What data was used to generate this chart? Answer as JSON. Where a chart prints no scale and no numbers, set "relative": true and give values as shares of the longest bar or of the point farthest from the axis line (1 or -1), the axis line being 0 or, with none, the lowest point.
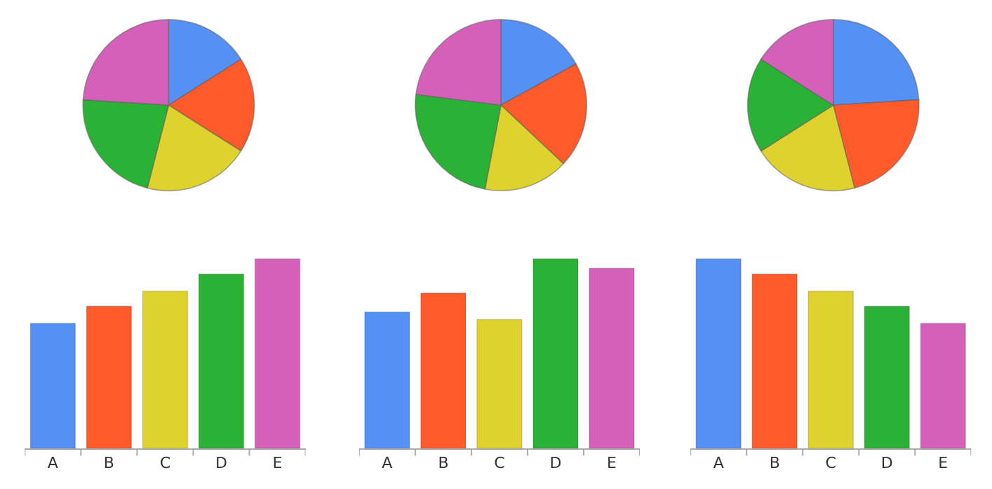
{
  "chart_data": [
    {
      "type": "pie",
      "categories": [
        null,
        null,
        null,
        null,
        null
      ],
      "values": [
        16,
        18,
        20,
        22,
        24
      ],
      "colors": [
        "#5591f5",
        "#fe5a2a",
        "#e0d22e",
        "#2bb236",
        "#d560b9"
      ]
    },
    {
      "type": "pie",
      "categories": [
        null,
        null,
        null,
        null,
        null
      ],
      "values": [
        17,
        20,
        16,
        24,
        23
      ],
      "colors": [
        "#5591f5",
        "#fe5a2a",
        "#e0d22e",
        "#2bb236",
        "#d560b9"
      ]
    },
    {
      "type": "pie",
      "categories": [
        null,
        null,
        null,
        null,
        null
      ],
      "values": [
        24,
        22,
        20,
        18,
        16
      ],
      "colors": [
        "#5591f5",
        "#fe5a2a",
        "#e0d22e",
        "#2bb236",
        "#d560b9"
      ]
    },
    {
      "type": "bar",
      "relative": true,
      "categories": [
        "A",
        "B",
        "C",
        "D",
        "E"
      ],
      "values": [
        0.66,
        0.75,
        0.83,
        0.92,
        1
      ],
      "colors": [
        "#5591f5",
        "#fe5a2a",
        "#e0d22e",
        "#2bb236",
        "#d560b9"
      ]
    },
    {
      "type": "bar",
      "relative": true,
      "categories": [
        "A",
        "B",
        "C",
        "D",
        "E"
      ],
      "values": [
        0.72,
        0.82,
        0.68,
        1,
        0.95
      ],
      "colors": [
        "#5591f5",
        "#fe5a2a",
        "#e0d22e",
        "#2bb236",
        "#d560b9"
      ]
    },
    {
      "type": "bar",
      "relative": true,
      "categories": [
        "A",
        "B",
        "C",
        "D",
        "E"
      ],
      "values": [
        1,
        0.92,
        0.83,
        0.75,
        0.66
      ],
      "colors": [
        "#5591f5",
        "#fe5a2a",
        "#e0d22e",
        "#2bb236",
        "#d560b9"
      ]
    }
  ]
}
